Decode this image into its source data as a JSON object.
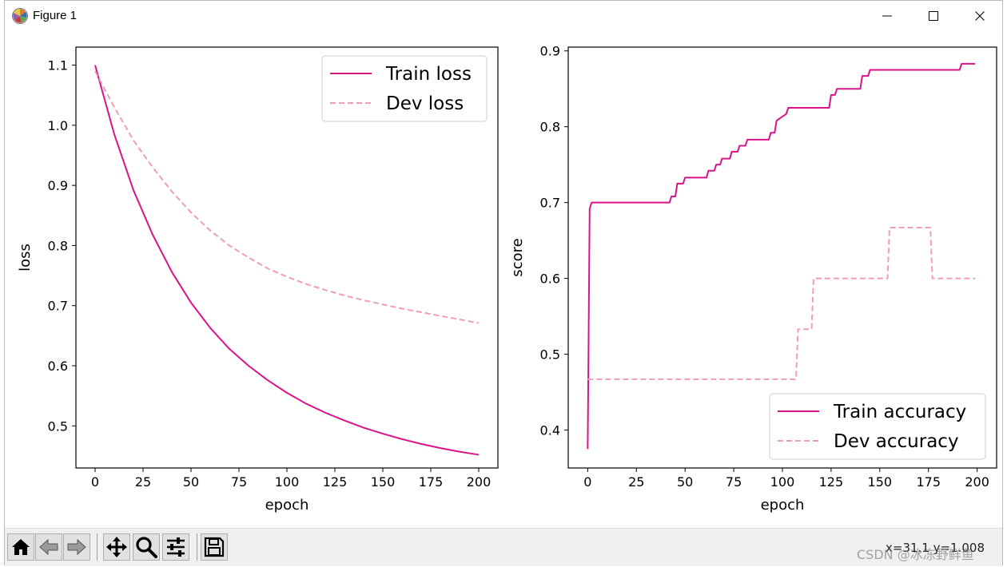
{
  "window": {
    "title": "Figure 1",
    "minimize_icon": "minimize-icon",
    "maximize_icon": "maximize-icon",
    "close_icon": "close-icon"
  },
  "toolbar": {
    "buttons": [
      "home-icon",
      "back-arrow-icon",
      "forward-arrow-icon",
      "pan-icon",
      "zoom-icon",
      "configure-subplots-icon",
      "save-icon"
    ],
    "coords": "x=31.1 y=1.008"
  },
  "watermark": "CSDN @冰冻野鲜鱼",
  "colors": {
    "train": "#d9138a",
    "dev": "#f09cbc",
    "axis": "#000000"
  },
  "chart_data": [
    {
      "type": "line",
      "xlabel": "epoch",
      "ylabel": "loss",
      "xlim": [
        -10,
        210
      ],
      "ylim": [
        0.43,
        1.13
      ],
      "xticks": [
        0,
        25,
        50,
        75,
        100,
        125,
        150,
        175,
        200
      ],
      "yticks": [
        0.5,
        0.6,
        0.7,
        0.8,
        0.9,
        1.0,
        1.1
      ],
      "ytick_labels": [
        "0.5",
        "0.6",
        "0.7",
        "0.8",
        "0.9",
        "1.0",
        "1.1"
      ],
      "legend_position": "upper-right",
      "series": [
        {
          "name": "Train loss",
          "style": "solid",
          "color": "#d9138a",
          "x": [
            0,
            10,
            20,
            30,
            40,
            50,
            60,
            70,
            80,
            90,
            100,
            110,
            120,
            130,
            140,
            150,
            160,
            170,
            180,
            190,
            200
          ],
          "y": [
            1.1,
            0.985,
            0.892,
            0.818,
            0.756,
            0.705,
            0.663,
            0.628,
            0.6,
            0.576,
            0.555,
            0.537,
            0.522,
            0.509,
            0.497,
            0.487,
            0.478,
            0.47,
            0.463,
            0.457,
            0.452
          ]
        },
        {
          "name": "Dev loss",
          "style": "dashed",
          "color": "#f09cbc",
          "x": [
            0,
            10,
            20,
            30,
            40,
            50,
            60,
            70,
            80,
            90,
            100,
            110,
            120,
            130,
            140,
            150,
            160,
            170,
            180,
            190,
            200
          ],
          "y": [
            1.09,
            1.03,
            0.975,
            0.93,
            0.89,
            0.855,
            0.825,
            0.8,
            0.78,
            0.762,
            0.748,
            0.736,
            0.726,
            0.717,
            0.709,
            0.702,
            0.695,
            0.689,
            0.683,
            0.677,
            0.671
          ]
        }
      ]
    },
    {
      "type": "line",
      "xlabel": "epoch",
      "ylabel": "score",
      "xlim": [
        -10,
        210
      ],
      "ylim": [
        0.35,
        0.905
      ],
      "xticks": [
        0,
        25,
        50,
        75,
        100,
        125,
        150,
        175,
        200
      ],
      "yticks": [
        0.4,
        0.5,
        0.6,
        0.7,
        0.8,
        0.9
      ],
      "ytick_labels": [
        "0.4",
        "0.5",
        "0.6",
        "0.7",
        "0.8",
        "0.9"
      ],
      "legend_position": "lower-right",
      "series": [
        {
          "name": "Train accuracy",
          "style": "solid",
          "color": "#d9138a",
          "x": [
            0,
            1,
            2,
            42,
            43,
            45,
            46,
            49,
            50,
            57,
            58,
            61,
            62,
            65,
            66,
            68,
            69,
            73,
            74,
            77,
            78,
            81,
            82,
            90,
            91,
            93,
            94,
            96,
            97,
            102,
            103,
            124,
            125,
            127,
            128,
            137,
            138,
            140,
            141,
            144,
            145,
            191,
            192,
            199
          ],
          "y": [
            0.375,
            0.692,
            0.7,
            0.7,
            0.708,
            0.708,
            0.725,
            0.725,
            0.733,
            0.733,
            0.733,
            0.733,
            0.742,
            0.742,
            0.75,
            0.75,
            0.758,
            0.758,
            0.767,
            0.767,
            0.775,
            0.775,
            0.783,
            0.783,
            0.783,
            0.783,
            0.792,
            0.792,
            0.808,
            0.817,
            0.825,
            0.825,
            0.842,
            0.842,
            0.85,
            0.85,
            0.85,
            0.85,
            0.867,
            0.867,
            0.875,
            0.875,
            0.883,
            0.883
          ]
        },
        {
          "name": "Dev accuracy",
          "style": "dashed",
          "color": "#f09cbc",
          "x": [
            0,
            107,
            108,
            112,
            113,
            115,
            116,
            154,
            155,
            176,
            177,
            199
          ],
          "y": [
            0.467,
            0.467,
            0.533,
            0.533,
            0.533,
            0.533,
            0.6,
            0.6,
            0.667,
            0.667,
            0.6,
            0.6
          ]
        }
      ]
    }
  ]
}
